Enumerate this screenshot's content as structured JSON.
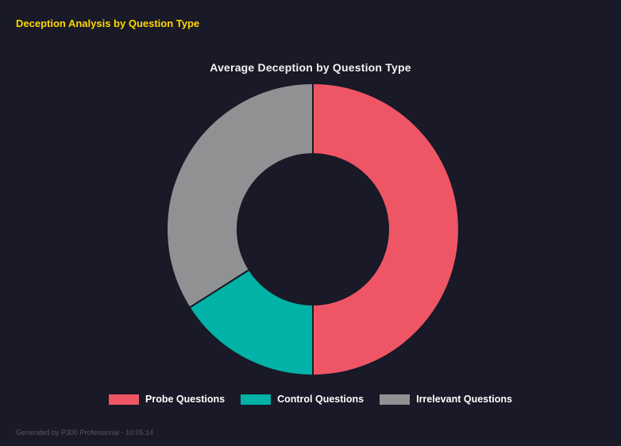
{
  "page": {
    "header": "Deception Analysis by Question Type",
    "footer": "Generated by P300 Professional - 10:05:14"
  },
  "chart_data": {
    "type": "doughnut",
    "title": "Average Deception by Question Type",
    "labels": [
      "Probe Questions",
      "Control Questions",
      "Irrelevant Questions"
    ],
    "values": [
      50,
      16,
      34
    ],
    "unit": "percent-of-circle",
    "colors": [
      "#ef5665",
      "#00b3a6",
      "#8f9193"
    ],
    "background": "#191927",
    "legend_position": "bottom",
    "donut_cutout_ratio": 0.51,
    "grid": false
  }
}
